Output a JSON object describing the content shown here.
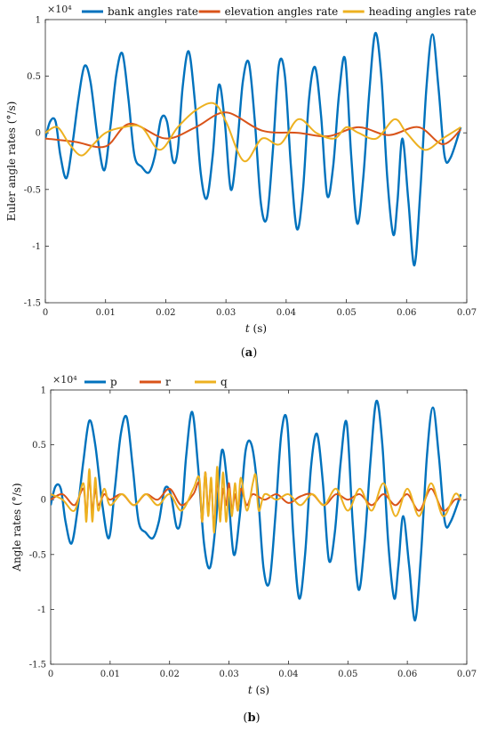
{
  "chart_data": [
    {
      "type": "line",
      "caption_open": "(",
      "caption_letter": "a",
      "caption_close": ")",
      "exponent_label": "×10⁴",
      "xlabel": "t",
      "xlabel_unit": " (s)",
      "ylabel": "Euler angle rates (°/s)",
      "xlim": [
        0,
        0.07
      ],
      "ylim": [
        -1.5,
        1
      ],
      "x_ticks": [
        0,
        0.01,
        0.02,
        0.03,
        0.04,
        0.05,
        0.06,
        0.07
      ],
      "x_tick_labels": [
        "0",
        "0.01",
        "0.02",
        "0.03",
        "0.04",
        "0.05",
        "0.06",
        "0.07"
      ],
      "y_ticks": [
        -1.5,
        -1,
        -0.5,
        0,
        0.5,
        1
      ],
      "y_tick_labels": [
        "-1.5",
        "-1",
        "-0.5",
        "0",
        "0.5",
        "1"
      ],
      "legend_position": "top",
      "series": [
        {
          "name": "bank angles rate",
          "color": "#0072BD",
          "x": [
            0,
            0.0008,
            0.0017,
            0.0025,
            0.0035,
            0.0045,
            0.0055,
            0.0065,
            0.0075,
            0.0087,
            0.0098,
            0.0108,
            0.0118,
            0.0128,
            0.0138,
            0.0148,
            0.016,
            0.0172,
            0.0182,
            0.0192,
            0.0202,
            0.0212,
            0.022,
            0.0228,
            0.0238,
            0.0248,
            0.0258,
            0.0268,
            0.0278,
            0.0288,
            0.0298,
            0.0308,
            0.0318,
            0.0328,
            0.0338,
            0.0348,
            0.0358,
            0.0368,
            0.0378,
            0.0388,
            0.0398,
            0.0408,
            0.0418,
            0.0428,
            0.0438,
            0.0448,
            0.0458,
            0.0468,
            0.0478,
            0.0488,
            0.0498,
            0.0508,
            0.0518,
            0.0528,
            0.0538,
            0.0548,
            0.0558,
            0.0568,
            0.0578,
            0.0585,
            0.0593,
            0.0603,
            0.0613,
            0.0623,
            0.0633,
            0.0643,
            0.0653,
            0.0663,
            0.0673,
            0.069
          ],
          "values": [
            -0.05,
            0.1,
            0.1,
            -0.2,
            -0.4,
            -0.1,
            0.3,
            0.59,
            0.45,
            -0.05,
            -0.33,
            0.05,
            0.52,
            0.7,
            0.3,
            -0.2,
            -0.3,
            -0.35,
            -0.2,
            0.12,
            0.1,
            -0.25,
            -0.15,
            0.4,
            0.72,
            0.3,
            -0.35,
            -0.58,
            -0.2,
            0.42,
            0.1,
            -0.5,
            -0.15,
            0.45,
            0.62,
            0.1,
            -0.62,
            -0.75,
            -0.15,
            0.6,
            0.5,
            -0.3,
            -0.85,
            -0.5,
            0.3,
            0.58,
            0.15,
            -0.55,
            -0.3,
            0.35,
            0.65,
            -0.2,
            -0.8,
            -0.4,
            0.35,
            0.88,
            0.5,
            -0.4,
            -0.9,
            -0.6,
            -0.05,
            -0.6,
            -1.17,
            -0.5,
            0.4,
            0.87,
            0.4,
            -0.2,
            -0.22,
            0.05
          ]
        },
        {
          "name": "elevation angles rate",
          "color": "#D95319",
          "x": [
            0,
            0.005,
            0.01,
            0.014,
            0.02,
            0.025,
            0.03,
            0.036,
            0.042,
            0.047,
            0.052,
            0.057,
            0.062,
            0.066,
            0.069
          ],
          "values": [
            -0.05,
            -0.08,
            -0.12,
            0.08,
            -0.05,
            0.05,
            0.18,
            0.02,
            0.0,
            -0.03,
            0.05,
            -0.02,
            0.05,
            -0.1,
            0.03
          ]
        },
        {
          "name": "heading angles rate",
          "color": "#EDB120",
          "x": [
            0,
            0.002,
            0.004,
            0.006,
            0.008,
            0.01,
            0.013,
            0.016,
            0.019,
            0.022,
            0.025,
            0.028,
            0.03,
            0.033,
            0.036,
            0.039,
            0.042,
            0.045,
            0.048,
            0.05,
            0.052,
            0.055,
            0.058,
            0.06,
            0.063,
            0.066,
            0.069
          ],
          "values": [
            0,
            0.05,
            -0.1,
            -0.2,
            -0.1,
            0.0,
            0.05,
            0.05,
            -0.15,
            0.05,
            0.2,
            0.26,
            0.1,
            -0.25,
            -0.05,
            -0.1,
            0.12,
            0.0,
            -0.05,
            0.05,
            0.0,
            -0.05,
            0.12,
            0.0,
            -0.15,
            -0.05,
            0.05
          ]
        }
      ]
    },
    {
      "type": "line",
      "caption_open": "(",
      "caption_letter": "b",
      "caption_close": ")",
      "exponent_label": "×10⁴",
      "xlabel": "t",
      "xlabel_unit": " (s)",
      "ylabel": "Angle rates (°/s)",
      "xlim": [
        0,
        0.07
      ],
      "ylim": [
        -1.5,
        1
      ],
      "x_ticks": [
        0,
        0.01,
        0.02,
        0.03,
        0.04,
        0.05,
        0.06,
        0.07
      ],
      "x_tick_labels": [
        "0",
        "0.01",
        "0.02",
        "0.03",
        "0.04",
        "0.05",
        "0.06",
        "0.07"
      ],
      "y_ticks": [
        -1.5,
        -1,
        -0.5,
        0,
        0.5,
        1
      ],
      "y_tick_labels": [
        "-1.5",
        "-1",
        "-0.5",
        "0",
        "0.5",
        "1"
      ],
      "legend_position": "top",
      "series": [
        {
          "name": "p",
          "color": "#0072BD",
          "x": [
            0,
            0.0008,
            0.0017,
            0.0025,
            0.0035,
            0.0045,
            0.0055,
            0.0065,
            0.0075,
            0.0087,
            0.0098,
            0.0108,
            0.0118,
            0.0128,
            0.0138,
            0.0148,
            0.016,
            0.0172,
            0.0182,
            0.0192,
            0.0202,
            0.0212,
            0.022,
            0.0228,
            0.0238,
            0.0248,
            0.0258,
            0.0268,
            0.0278,
            0.0288,
            0.0298,
            0.0308,
            0.0318,
            0.0328,
            0.0338,
            0.0348,
            0.0358,
            0.0368,
            0.0378,
            0.0388,
            0.0398,
            0.0408,
            0.0418,
            0.0428,
            0.0438,
            0.0448,
            0.0458,
            0.0468,
            0.0478,
            0.0488,
            0.0498,
            0.0508,
            0.0518,
            0.0528,
            0.0538,
            0.0548,
            0.0558,
            0.0568,
            0.0578,
            0.0585,
            0.0593,
            0.0603,
            0.0613,
            0.0623,
            0.0633,
            0.0643,
            0.0653,
            0.0663,
            0.0673,
            0.069
          ],
          "values": [
            -0.05,
            0.12,
            0.1,
            -0.2,
            -0.4,
            -0.1,
            0.35,
            0.72,
            0.5,
            -0.05,
            -0.35,
            0.1,
            0.6,
            0.75,
            0.3,
            -0.2,
            -0.3,
            -0.35,
            -0.2,
            0.1,
            0.05,
            -0.25,
            -0.15,
            0.4,
            0.8,
            0.3,
            -0.4,
            -0.62,
            -0.2,
            0.45,
            0.1,
            -0.5,
            -0.15,
            0.45,
            0.5,
            0.1,
            -0.62,
            -0.75,
            -0.15,
            0.6,
            0.7,
            -0.3,
            -0.9,
            -0.5,
            0.3,
            0.6,
            0.15,
            -0.55,
            -0.3,
            0.35,
            0.7,
            -0.2,
            -0.82,
            -0.4,
            0.35,
            0.9,
            0.5,
            -0.4,
            -0.9,
            -0.6,
            -0.15,
            -0.6,
            -1.1,
            -0.5,
            0.4,
            0.84,
            0.4,
            -0.2,
            -0.2,
            0.05
          ]
        },
        {
          "name": "r",
          "color": "#D95319",
          "x": [
            0,
            0.002,
            0.004,
            0.0055,
            0.006,
            0.0065,
            0.007,
            0.0075,
            0.008,
            0.009,
            0.01,
            0.012,
            0.014,
            0.016,
            0.018,
            0.02,
            0.022,
            0.024,
            0.025,
            0.0255,
            0.026,
            0.0265,
            0.027,
            0.0275,
            0.028,
            0.0285,
            0.029,
            0.0295,
            0.03,
            0.0305,
            0.031,
            0.0315,
            0.032,
            0.033,
            0.034,
            0.036,
            0.038,
            0.04,
            0.042,
            0.044,
            0.046,
            0.048,
            0.05,
            0.052,
            0.054,
            0.056,
            0.058,
            0.06,
            0.062,
            0.064,
            0.066,
            0.068,
            0.069
          ],
          "values": [
            0.0,
            0.05,
            -0.05,
            0.1,
            -0.15,
            0.2,
            -0.1,
            0.1,
            -0.05,
            0.05,
            0.0,
            0.05,
            -0.05,
            0.05,
            0.0,
            0.1,
            -0.05,
            0.05,
            0.15,
            -0.2,
            0.25,
            -0.1,
            0.15,
            -0.25,
            0.2,
            -0.15,
            0.1,
            -0.05,
            0.15,
            -0.1,
            0.05,
            -0.1,
            0.1,
            -0.05,
            0.05,
            0.0,
            0.05,
            -0.03,
            0.03,
            0.05,
            -0.05,
            0.05,
            0.0,
            0.05,
            -0.05,
            0.05,
            -0.05,
            0.05,
            -0.1,
            0.1,
            -0.1,
            0.0,
            0.0
          ]
        },
        {
          "name": "q",
          "color": "#EDB120",
          "x": [
            0,
            0.002,
            0.004,
            0.0055,
            0.006,
            0.0065,
            0.007,
            0.0075,
            0.008,
            0.009,
            0.01,
            0.012,
            0.014,
            0.016,
            0.018,
            0.02,
            0.022,
            0.024,
            0.025,
            0.0255,
            0.026,
            0.0265,
            0.027,
            0.0275,
            0.028,
            0.0285,
            0.029,
            0.0295,
            0.03,
            0.0305,
            0.031,
            0.0315,
            0.032,
            0.033,
            0.034,
            0.0345,
            0.035,
            0.036,
            0.038,
            0.04,
            0.042,
            0.044,
            0.046,
            0.048,
            0.05,
            0.052,
            0.054,
            0.056,
            0.058,
            0.06,
            0.062,
            0.064,
            0.066,
            0.068,
            0.069
          ],
          "values": [
            0.05,
            0.0,
            -0.1,
            0.15,
            -0.2,
            0.28,
            -0.2,
            0.2,
            -0.1,
            0.1,
            -0.05,
            0.05,
            -0.05,
            0.05,
            -0.05,
            0.05,
            -0.1,
            0.1,
            0.2,
            -0.2,
            0.25,
            -0.15,
            0.2,
            -0.3,
            0.3,
            -0.2,
            0.25,
            -0.2,
            0.1,
            -0.15,
            0.15,
            -0.1,
            0.2,
            -0.1,
            0.15,
            0.22,
            -0.1,
            0.05,
            0.0,
            0.05,
            -0.05,
            0.05,
            -0.05,
            0.1,
            -0.1,
            0.1,
            -0.1,
            0.15,
            -0.15,
            0.1,
            -0.15,
            0.15,
            -0.15,
            0.05,
            0.0
          ]
        }
      ]
    }
  ]
}
